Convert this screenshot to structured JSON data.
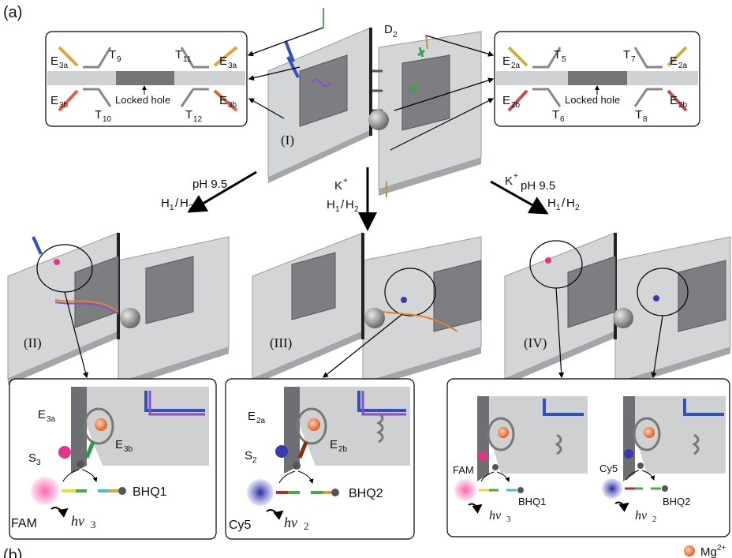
{
  "panel_labels": {
    "a": "(a)",
    "b": "(b)"
  },
  "state_labels": {
    "I": "(I)",
    "II": "(II)",
    "III": "(III)",
    "IV": "(IV)"
  },
  "top": {
    "d2": "D",
    "d2_sub": "2"
  },
  "inset_left": {
    "e3a": "E",
    "e3a_sub": "3a",
    "e3b": "E",
    "e3b_sub": "3b",
    "t9": "T",
    "t9_sub": "9",
    "t10": "T",
    "t10_sub": "10",
    "t11": "T",
    "t11_sub": "11",
    "t12": "T",
    "t12_sub": "12",
    "locked": "Locked hole"
  },
  "inset_right": {
    "e2a": "E",
    "e2a_sub": "2a",
    "e2b": "E",
    "e2b_sub": "2b",
    "t5": "T",
    "t5_sub": "5",
    "t6": "T",
    "t6_sub": "6",
    "t7": "T",
    "t7_sub": "7",
    "t8": "T",
    "t8_sub": "8",
    "locked": "Locked hole"
  },
  "arrows": {
    "left": {
      "line1": "pH 9.5",
      "h1": "H",
      "h1_sub": "1",
      "slash": "/",
      "h2": "H",
      "h2_sub": "2"
    },
    "middle": {
      "k": "K",
      "k_sup": "+",
      "h1": "H",
      "h1_sub": "1",
      "slash": "/",
      "h2": "H",
      "h2_sub": "2"
    },
    "right": {
      "k": "K",
      "k_sup": "+",
      "ph": "pH 9.5",
      "h1": "H",
      "h1_sub": "1",
      "slash": "/",
      "h2": "H",
      "h2_sub": "2"
    }
  },
  "zoom_ii": {
    "e3a": "E",
    "e3a_sub": "3a",
    "e3b": "E",
    "e3b_sub": "3b",
    "s3": "S",
    "s3_sub": "3",
    "fam": "FAM",
    "bhq": "BHQ1",
    "hv": "hν",
    "hv_sub": "3"
  },
  "zoom_iii": {
    "e2a": "E",
    "e2a_sub": "2a",
    "e2b": "E",
    "e2b_sub": "2b",
    "s2": "S",
    "s2_sub": "2",
    "cy5": "Cy5",
    "bhq": "BHQ2",
    "hv": "hν",
    "hv_sub": "2"
  },
  "zoom_iv": {
    "fam": "FAM",
    "bhq1": "BHQ1",
    "hv3": "hν",
    "hv3_sub": "3",
    "cy5": "Cy5",
    "bhq2": "BHQ2",
    "hv2": "hν",
    "hv2_sub": "2"
  },
  "legend": {
    "mg": "Mg",
    "mg_sup": "2+"
  },
  "colors": {
    "plate": "#cfd0d2",
    "plate_dark": "#8e9095",
    "hole": "#76787c",
    "fam": "#e8338a",
    "cy5": "#3a3ab0",
    "mg": "#f08040"
  }
}
